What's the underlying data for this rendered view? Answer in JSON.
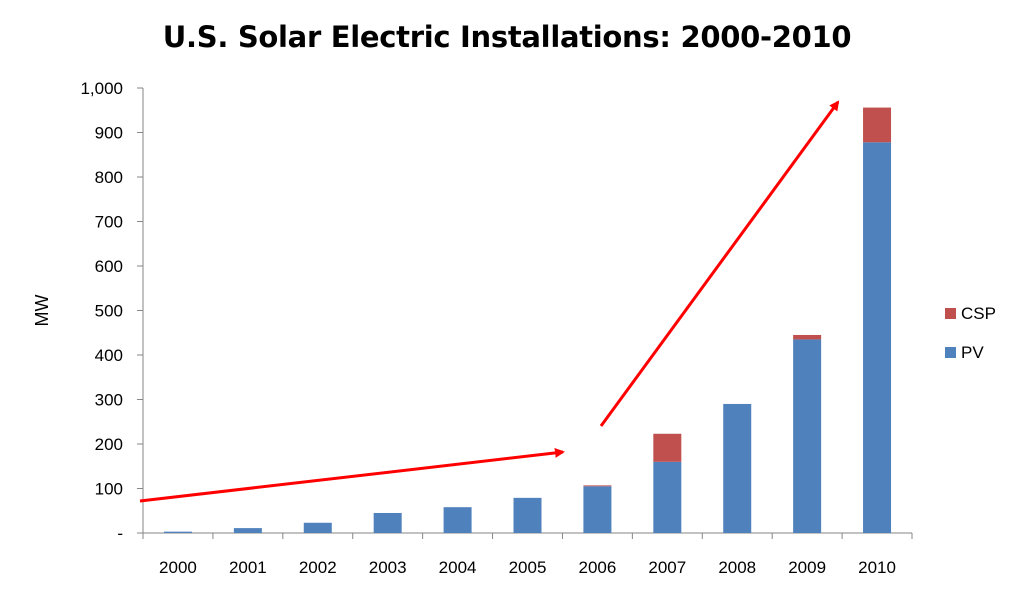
{
  "chart_data": {
    "type": "bar",
    "stacked": true,
    "title": "U.S. Solar Electric Installations: 2000-2010",
    "xlabel": "",
    "ylabel": "MW",
    "categories": [
      "2000",
      "2001",
      "2002",
      "2003",
      "2004",
      "2005",
      "2006",
      "2007",
      "2008",
      "2009",
      "2010"
    ],
    "series": [
      {
        "name": "PV",
        "color": "#4F81BD",
        "values": [
          3,
          11,
          23,
          45,
          58,
          79,
          105,
          160,
          290,
          435,
          878
        ]
      },
      {
        "name": "CSP",
        "color": "#C0504D",
        "values": [
          0,
          0,
          0,
          0,
          0,
          0,
          2,
          63,
          0,
          10,
          78
        ]
      }
    ],
    "ylim": [
      0,
      1000
    ],
    "yticks": [
      {
        "value": 0,
        "label": "-"
      },
      {
        "value": 100,
        "label": "100"
      },
      {
        "value": 200,
        "label": "200"
      },
      {
        "value": 300,
        "label": "300"
      },
      {
        "value": 400,
        "label": "400"
      },
      {
        "value": 500,
        "label": "500"
      },
      {
        "value": 600,
        "label": "600"
      },
      {
        "value": 700,
        "label": "700"
      },
      {
        "value": 800,
        "label": "800"
      },
      {
        "value": 900,
        "label": "900"
      },
      {
        "value": 1000,
        "label": "1,000"
      }
    ],
    "legend": {
      "position": "right",
      "entries": [
        "CSP",
        "PV"
      ]
    },
    "grid": false,
    "annotations": [
      {
        "type": "trend-arrow",
        "color": "#FF0000",
        "from": {
          "x": "before-2000",
          "y": 70
        },
        "to": {
          "x": "2006",
          "y": 185
        }
      },
      {
        "type": "trend-arrow",
        "color": "#FF0000",
        "from": {
          "x": "2006",
          "y": 240
        },
        "to": {
          "x": "2009-2010",
          "y": 975
        }
      }
    ]
  }
}
